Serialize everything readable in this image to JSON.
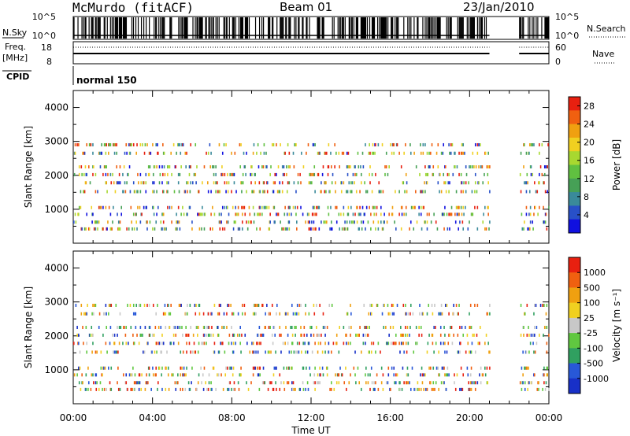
{
  "header": {
    "station": "McMurdo (fitACF)",
    "beam": "Beam 01",
    "date": "23/Jan/2010"
  },
  "summary": {
    "nsky_label": "N.Sky",
    "nsky_ticks": [
      "10^5",
      "10^0"
    ],
    "nsearch_label": "N.Search",
    "nsearch_ticks": [
      "10^5",
      "10^0"
    ],
    "freq_label": "Freq.",
    "freq_unit": "[MHz]",
    "freq_ticks": [
      "18",
      "8"
    ],
    "nave_label": "Nave",
    "nave_ticks": [
      "60",
      "0"
    ],
    "cpid_label": "CPID",
    "cpid_value": "normal 150",
    "data_gap_hours": [
      [
        21.0,
        22.5
      ]
    ]
  },
  "chart_data": [
    {
      "type": "scatter",
      "name": "power",
      "xlabel": "",
      "ylabel": "Slant Range [km]",
      "xlim": [
        0,
        24
      ],
      "ylim": [
        0,
        4500
      ],
      "yticks": [
        "1000",
        "2000",
        "3000",
        "4000"
      ],
      "colorbar": {
        "label": "Power [dB]",
        "ticks": [
          "28",
          "24",
          "20",
          "16",
          "12",
          "8",
          "4"
        ],
        "range": [
          0,
          30
        ],
        "colors": [
          "#1010e0",
          "#2850c8",
          "#3a8a9a",
          "#46a056",
          "#60c040",
          "#a8d830",
          "#f0d020",
          "#f0a010",
          "#f06010",
          "#e82010"
        ]
      },
      "range_gates_km": [
        420,
        620,
        850,
        1050,
        1520,
        1780,
        2020,
        2250,
        2650,
        2900
      ],
      "gap_hours": [
        [
          21.0,
          22.5
        ]
      ]
    },
    {
      "type": "scatter",
      "name": "velocity",
      "xlabel": "Time UT",
      "ylabel": "Slant Range [km]",
      "xlim": [
        0,
        24
      ],
      "ylim": [
        0,
        4500
      ],
      "yticks": [
        "1000",
        "2000",
        "3000",
        "4000"
      ],
      "xticks": [
        "00:00",
        "04:00",
        "08:00",
        "12:00",
        "16:00",
        "20:00",
        "00:00"
      ],
      "colorbar": {
        "label": "Velocity [m s⁻¹]",
        "ticks": [
          "1000",
          "500",
          "100",
          "25",
          "-25",
          "-100",
          "-500",
          "-1000"
        ],
        "colors": [
          "#1830c8",
          "#2858d8",
          "#30a060",
          "#60c840",
          "#c8c8c8",
          "#f0d020",
          "#f0a010",
          "#f06010",
          "#e82010"
        ]
      },
      "range_gates_km": [
        420,
        620,
        850,
        1050,
        1520,
        1780,
        2020,
        2250,
        2650,
        2900
      ],
      "gap_hours": [
        [
          21.0,
          22.5
        ]
      ]
    }
  ]
}
